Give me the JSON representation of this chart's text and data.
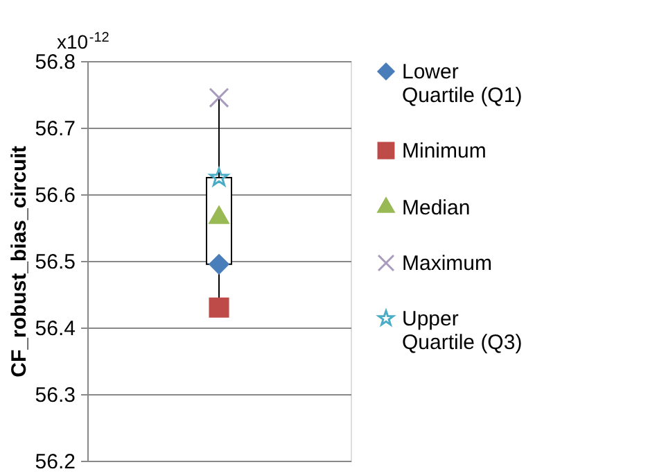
{
  "chart_data": {
    "type": "box",
    "ylabel": "CF_robust_bias_circuit",
    "annotations": [
      "x10$^{-12}$"
    ],
    "categories": [
      null
    ],
    "boxes": [
      {
        "low": 56.43,
        "q1": 56.495,
        "q3": 56.625,
        "high": 56.745
      }
    ],
    "ylim": [
      56.2,
      56.8
    ],
    "yticks": [
      56.2,
      56.3,
      56.4,
      56.5,
      56.6,
      56.7,
      56.8
    ],
    "grid": "y",
    "legend": "right",
    "tick_labels": "y",
    "series": [
      {
        "name": "Lower Quartile (Q1)",
        "type": "scatter",
        "marker": "diamond",
        "color": "#4a7ebb",
        "values": [
          56.495
        ]
      },
      {
        "name": "Minimum",
        "type": "scatter",
        "marker": "square",
        "color": "#be4b48",
        "values": [
          56.43
        ]
      },
      {
        "name": "Median",
        "type": "scatter",
        "marker": "triangle",
        "color": "#98b954",
        "values": [
          56.565
        ]
      },
      {
        "name": "Maximum",
        "type": "scatter",
        "marker": "cross",
        "color": "#a99bbd",
        "values": [
          56.745
        ]
      },
      {
        "name": "Upper Quartile (Q3)",
        "type": "scatter",
        "marker": "star",
        "color": "#4bacc6",
        "values": [
          56.625
        ]
      }
    ]
  }
}
